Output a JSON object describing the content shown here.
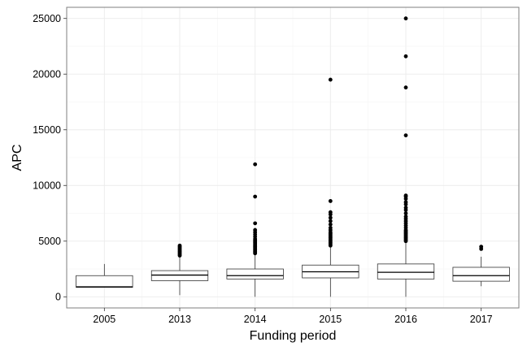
{
  "chart_data": {
    "type": "boxplot",
    "xlabel": "Funding period",
    "ylabel": "APC",
    "ylim": [
      -1000,
      26000
    ],
    "yticks": [
      0,
      5000,
      10000,
      15000,
      20000,
      25000
    ],
    "grid": true,
    "categories": [
      "2005",
      "2013",
      "2014",
      "2015",
      "2016",
      "2017"
    ],
    "boxes": [
      {
        "category": "2005",
        "whisker_low": 850,
        "q1": 850,
        "median": 900,
        "q3": 1900,
        "whisker_high": 2950,
        "outliers": []
      },
      {
        "category": "2013",
        "whisker_low": 150,
        "q1": 1450,
        "median": 1950,
        "q3": 2350,
        "whisker_high": 3600,
        "outliers": [
          3700,
          3800,
          3900,
          4000,
          4100,
          4200,
          4300,
          4400,
          4500,
          4600
        ]
      },
      {
        "category": "2014",
        "whisker_low": 0,
        "q1": 1600,
        "median": 1900,
        "q3": 2500,
        "whisker_high": 3800,
        "outliers": [
          3900,
          4000,
          4100,
          4200,
          4300,
          4400,
          4500,
          4600,
          4700,
          4800,
          4900,
          5000,
          5100,
          5200,
          5400,
          5600,
          5800,
          6000,
          6600,
          9000,
          11900
        ]
      },
      {
        "category": "2015",
        "whisker_low": 0,
        "q1": 1700,
        "median": 2250,
        "q3": 2850,
        "whisker_high": 4500,
        "outliers": [
          4600,
          4700,
          4800,
          4900,
          5000,
          5100,
          5200,
          5300,
          5400,
          5500,
          5600,
          5700,
          5800,
          6000,
          6200,
          6500,
          6800,
          7100,
          7400,
          7600,
          8600,
          19500
        ]
      },
      {
        "category": "2016",
        "whisker_low": 0,
        "q1": 1600,
        "median": 2200,
        "q3": 2950,
        "whisker_high": 4900,
        "outliers": [
          5000,
          5100,
          5200,
          5300,
          5400,
          5500,
          5600,
          5700,
          5800,
          5900,
          6000,
          6200,
          6400,
          6600,
          6800,
          7000,
          7200,
          7500,
          7800,
          8000,
          8300,
          8500,
          8800,
          9000,
          9100,
          14500,
          18800,
          21600,
          25000
        ]
      },
      {
        "category": "2017",
        "whisker_low": 950,
        "q1": 1400,
        "median": 1900,
        "q3": 2650,
        "whisker_high": 3600,
        "outliers": [
          4300,
          4500
        ]
      }
    ]
  }
}
